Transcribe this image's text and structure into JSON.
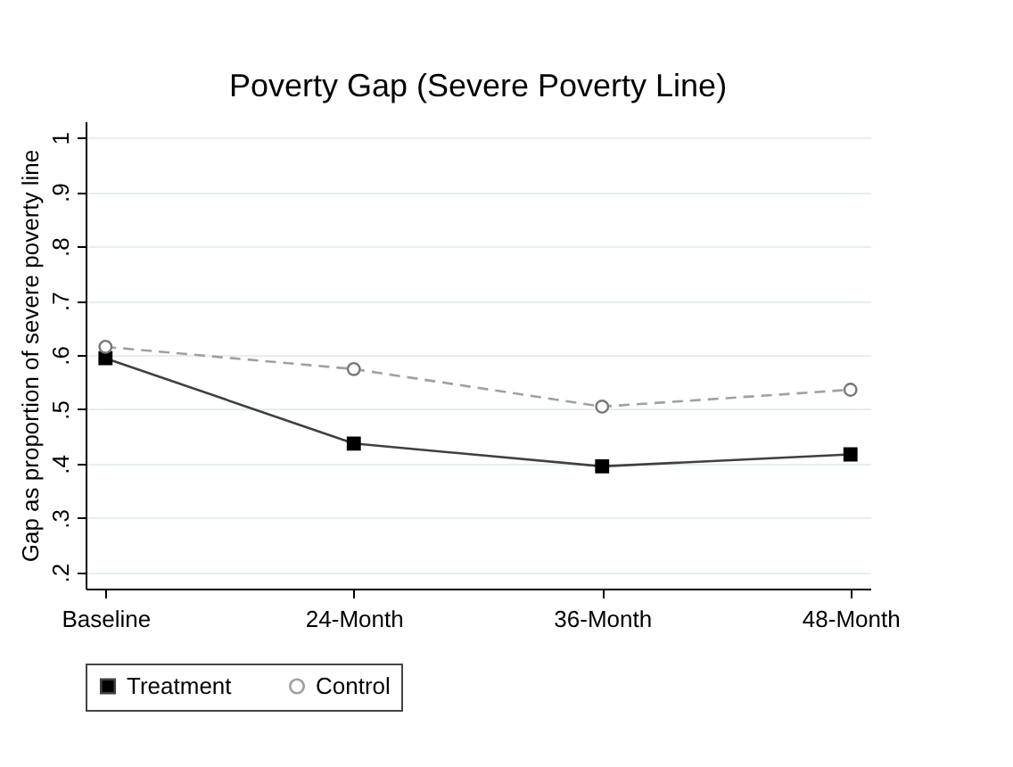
{
  "chart_data": {
    "type": "line",
    "title": "Poverty Gap (Severe Poverty Line)",
    "ylabel": "Gap as proportion of severe poverty line",
    "categories": [
      "Baseline",
      "24-Month",
      "36-Month",
      "48-Month"
    ],
    "series": [
      {
        "name": "Treatment",
        "color": "#404040",
        "marker": "square",
        "line_style": "solid",
        "values": [
          0.594,
          0.437,
          0.395,
          0.417
        ]
      },
      {
        "name": "Control",
        "color": "#a0a0a0",
        "marker": "circle",
        "line_style": "dashed",
        "values": [
          0.615,
          0.574,
          0.505,
          0.536
        ]
      }
    ],
    "ylim": [
      0.17,
      1.03
    ],
    "yticks": [
      {
        "value": 0.2,
        "label": ".2"
      },
      {
        "value": 0.3,
        "label": ".3"
      },
      {
        "value": 0.4,
        "label": ".4"
      },
      {
        "value": 0.5,
        "label": ".5"
      },
      {
        "value": 0.6,
        "label": ".6"
      },
      {
        "value": 0.7,
        "label": ".7"
      },
      {
        "value": 0.8,
        "label": ".8"
      },
      {
        "value": 0.9,
        "label": ".9"
      },
      1
    ],
    "grid": "y",
    "legend": "bottom"
  }
}
